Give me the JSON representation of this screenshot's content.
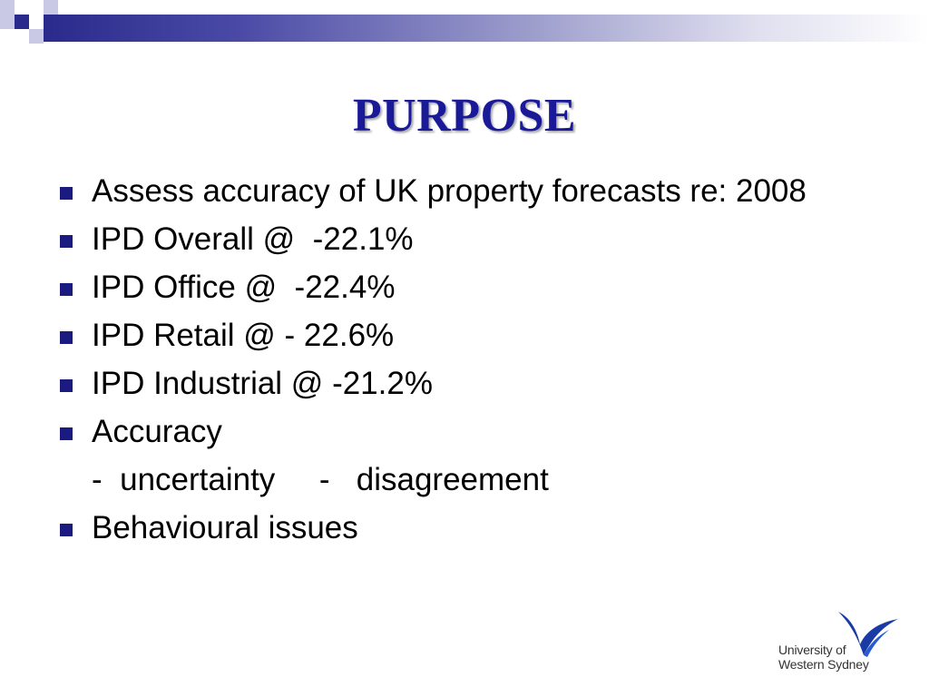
{
  "slide": {
    "title": "PURPOSE",
    "bullets": [
      {
        "text": "Assess accuracy of UK property forecasts re: 2008"
      },
      {
        "text": "IPD Overall @  -22.1%"
      },
      {
        "text": "IPD Office @  -22.4%"
      },
      {
        "text": "IPD Retail @ - 22.6%"
      },
      {
        "text": "IPD Industrial @ -21.2%"
      },
      {
        "text": "Accuracy"
      }
    ],
    "sub_line": "-  uncertainty     -   disagreement",
    "last_bullet": "Behavioural issues"
  },
  "logo": {
    "line1": "University of",
    "line2": "Western Sydney",
    "icon": "wsu-bird-logo"
  },
  "colors": {
    "title": "#1a1a99",
    "bullet": "#1a1a80",
    "bar_dark": "#2a2a8c"
  }
}
